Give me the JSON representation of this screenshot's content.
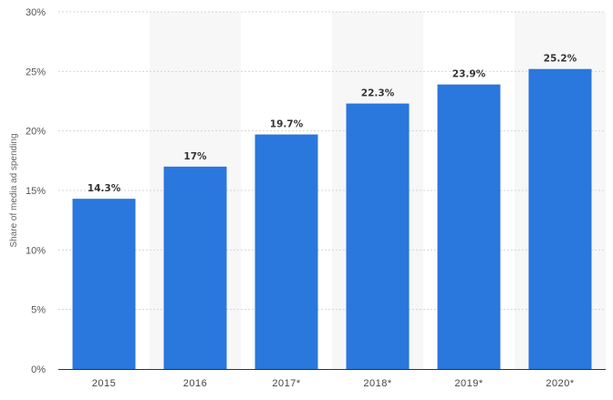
{
  "chart_data": {
    "type": "bar",
    "title": "",
    "xlabel": "",
    "ylabel": "Share of media ad spending",
    "categories": [
      "2015",
      "2016",
      "2017*",
      "2018*",
      "2019*",
      "2020*"
    ],
    "values": [
      14.3,
      17,
      19.7,
      22.3,
      23.9,
      25.2
    ],
    "data_labels": [
      "14.3%",
      "17%",
      "19.7%",
      "22.3%",
      "23.9%",
      "25.2%"
    ],
    "ylim": [
      0,
      30
    ],
    "yticks": [
      0,
      5,
      10,
      15,
      20,
      25,
      30
    ],
    "ytick_labels": [
      "0%",
      "5%",
      "10%",
      "15%",
      "20%",
      "25%",
      "30%"
    ],
    "grid": "horizontal dashed",
    "legend": "none",
    "colors": {
      "bar": "#2a77dd",
      "band": "#f7f7f7",
      "grid": "#d6d6d6",
      "axis": "#333333"
    }
  }
}
